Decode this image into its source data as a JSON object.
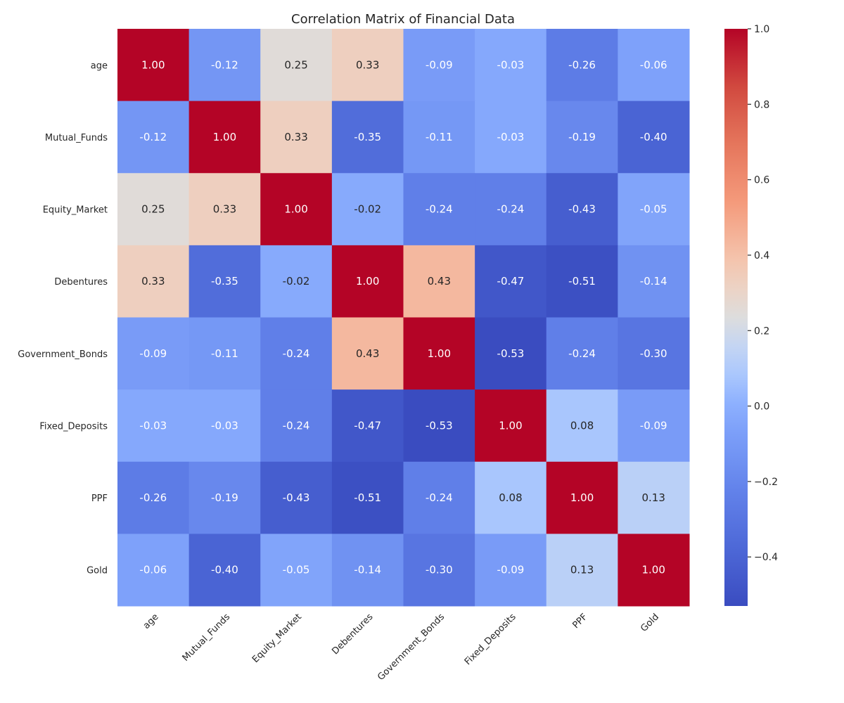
{
  "chart_data": {
    "type": "heatmap",
    "title": "Correlation Matrix of Financial Data",
    "colormap": "coolwarm",
    "annotation_format": "0.00",
    "vmin": -0.53,
    "vmax": 1.0,
    "colorbar": {
      "ticks": [
        1.0,
        0.8,
        0.6,
        0.4,
        0.2,
        0.0,
        -0.2,
        -0.4
      ],
      "tick_labels": [
        "1.0",
        "0.8",
        "0.6",
        "0.4",
        "0.2",
        "0.0",
        "−0.2",
        "−0.4"
      ]
    },
    "rows": [
      "age",
      "Mutual_Funds",
      "Equity_Market",
      "Debentures",
      "Government_Bonds",
      "Fixed_Deposits",
      "PPF",
      "Gold"
    ],
    "columns": [
      "age",
      "Mutual_Funds",
      "Equity_Market",
      "Debentures",
      "Government_Bonds",
      "Fixed_Deposits",
      "PPF",
      "Gold"
    ],
    "values": [
      [
        1.0,
        -0.12,
        0.25,
        0.33,
        -0.09,
        -0.03,
        -0.26,
        -0.06
      ],
      [
        -0.12,
        1.0,
        0.33,
        -0.35,
        -0.11,
        -0.03,
        -0.19,
        -0.4
      ],
      [
        0.25,
        0.33,
        1.0,
        -0.02,
        -0.24,
        -0.24,
        -0.43,
        -0.05
      ],
      [
        0.33,
        -0.35,
        -0.02,
        1.0,
        0.43,
        -0.47,
        -0.51,
        -0.14
      ],
      [
        -0.09,
        -0.11,
        -0.24,
        0.43,
        1.0,
        -0.53,
        -0.24,
        -0.3
      ],
      [
        -0.03,
        -0.03,
        -0.24,
        -0.47,
        -0.53,
        1.0,
        0.08,
        -0.09
      ],
      [
        -0.26,
        -0.19,
        -0.43,
        -0.51,
        -0.24,
        0.08,
        1.0,
        0.13
      ],
      [
        -0.06,
        -0.4,
        -0.05,
        -0.14,
        -0.3,
        -0.09,
        0.13,
        1.0
      ]
    ]
  }
}
